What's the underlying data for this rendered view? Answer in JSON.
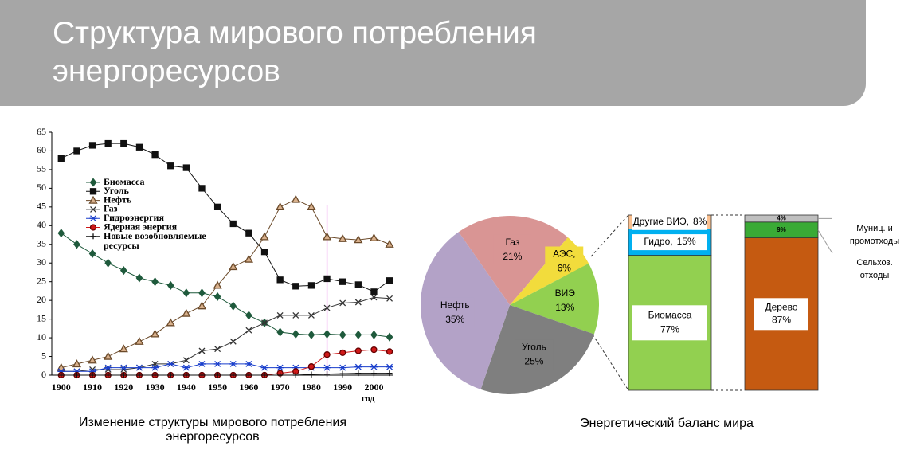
{
  "header": {
    "title": "Структура мирового потребления энергоресурсов"
  },
  "chart_data": [
    {
      "type": "line",
      "title": "Изменение структуры мирового потребления энергоресурсов",
      "x_label": "год",
      "x": [
        1900,
        1905,
        1910,
        1915,
        1920,
        1925,
        1930,
        1935,
        1940,
        1945,
        1950,
        1955,
        1960,
        1965,
        1970,
        1975,
        1980,
        1985,
        1990,
        1995,
        2000,
        2005
      ],
      "xlim": [
        1897,
        2006
      ],
      "xticks": [
        1900,
        1910,
        1920,
        1930,
        1940,
        1950,
        1960,
        1970,
        1980,
        1990,
        2000
      ],
      "ylim": [
        0,
        65
      ],
      "yticks": [
        0,
        5,
        10,
        15,
        20,
        25,
        30,
        35,
        40,
        45,
        50,
        55,
        60,
        65
      ],
      "vline_x": 1985,
      "vline_color": "#e040e0",
      "series": [
        {
          "name": "Биомасса",
          "color": "#1f5a3c",
          "marker": "diamond",
          "values": [
            38,
            35,
            32.5,
            30,
            28,
            26,
            25,
            24,
            22,
            22,
            21,
            18.5,
            16,
            14,
            11.5,
            11,
            10.8,
            11,
            10.8,
            10.8,
            10.8,
            10.2
          ]
        },
        {
          "name": "Уголь",
          "color": "#111111",
          "marker": "square",
          "values": [
            58,
            60,
            61.5,
            62,
            62,
            61,
            59,
            56,
            55.5,
            50,
            45,
            40.5,
            38,
            33,
            25.5,
            23.8,
            24,
            25.8,
            25,
            24.2,
            22.3,
            25.3
          ]
        },
        {
          "name": "Нефть",
          "color": "#6b4a2a",
          "marker": "triangle",
          "values": [
            2,
            3,
            4,
            5,
            7,
            9,
            11,
            14,
            16.5,
            18.5,
            24,
            29,
            31,
            37,
            45,
            47,
            45,
            37,
            36.5,
            36.2,
            36.7,
            35
          ]
        },
        {
          "name": "Газ",
          "color": "#333333",
          "marker": "cross",
          "values": [
            1,
            1,
            1.5,
            1.5,
            1.5,
            2,
            3,
            3,
            4,
            6.5,
            7,
            9,
            12,
            14,
            16,
            16,
            16,
            18,
            19.3,
            19.5,
            20.8,
            20.5
          ]
        },
        {
          "name": "Гидроэнергия",
          "color": "#1a3fcc",
          "marker": "asterisk",
          "values": [
            1,
            1,
            1,
            2,
            2,
            2,
            2,
            3,
            2,
            3,
            3,
            3,
            3,
            2,
            2,
            2,
            2,
            2,
            2,
            2.2,
            2.2,
            2.2
          ]
        },
        {
          "name": "Ядерная энергия",
          "color": "#d01818",
          "marker": "circle",
          "values": [
            0,
            0,
            0,
            0,
            0,
            0,
            0,
            0,
            0,
            0,
            0,
            0,
            0,
            0,
            0.5,
            1,
            2.3,
            5.5,
            6,
            6.5,
            6.8,
            6.3
          ]
        },
        {
          "name": "Новые возобновляемые ресурсы",
          "color": "#111111",
          "marker": "plus",
          "values": [
            0,
            0,
            0,
            0,
            0,
            0,
            0,
            0,
            0,
            0,
            0,
            0,
            0,
            0,
            0,
            0,
            0.2,
            0.3,
            0.4,
            0.5,
            0.5,
            0.5
          ]
        }
      ]
    },
    {
      "type": "pie",
      "title": "Энергетический баланс мира",
      "start_angle": -35,
      "categories": [
        "Газ",
        "АЭС,",
        "ВИЭ",
        "Уголь",
        "Нефть"
      ],
      "values": [
        21,
        6,
        13,
        25,
        35
      ],
      "value_labels": [
        "21%",
        "6%",
        "13%",
        "25%",
        "35%"
      ],
      "colors": [
        "#d99594",
        "#f2dc3c",
        "#92d050",
        "#7f7f7f",
        "#b3a2c7"
      ]
    },
    {
      "type": "stack",
      "names": [
        "Биомасса",
        "Гидро,",
        "Другие ВИЭ,"
      ],
      "values": [
        77,
        15,
        8
      ],
      "value_labels": [
        "77%",
        "15%",
        "8%"
      ],
      "colors": [
        "#92d050",
        "#00b0f0",
        "#fac090"
      ]
    },
    {
      "type": "stack",
      "names": [
        "Дерево",
        "Сельхоз. отходы",
        "Муниц. и промотходы"
      ],
      "values": [
        87,
        9,
        4
      ],
      "value_labels": [
        "87%",
        "9%",
        "4%"
      ],
      "colors": [
        "#c55a11",
        "#3aaa35",
        "#bfbfbf"
      ]
    }
  ]
}
